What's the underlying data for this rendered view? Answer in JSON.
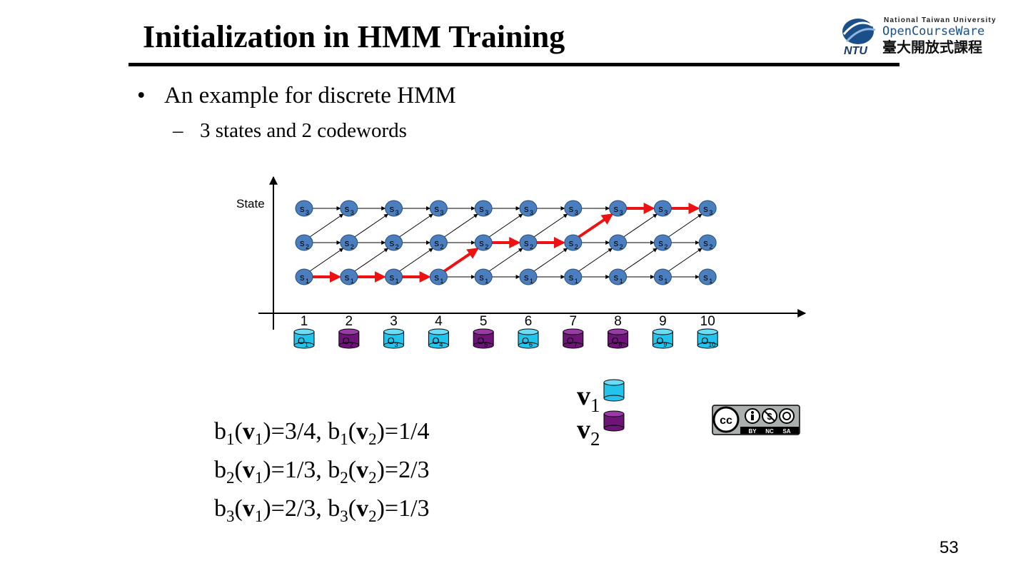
{
  "slide": {
    "title": "Initialization in HMM Training",
    "bullet_1": "An example for discrete HMM",
    "bullet_1_marker": "•",
    "bullet_2": "3 states and 2 codewords",
    "bullet_2_marker": "–",
    "page_number": "53"
  },
  "logo": {
    "line1": "National Taiwan University",
    "line2": "OpenCourseWare",
    "line3": "臺大開放式課程",
    "mark": "NTU"
  },
  "license": {
    "parts": [
      "BY",
      "NC",
      "SA"
    ],
    "cc": "cc"
  },
  "trellis": {
    "axis_label": "State",
    "times": [
      "1",
      "2",
      "3",
      "4",
      "5",
      "6",
      "7",
      "8",
      "9",
      "10"
    ],
    "state_labels": [
      {
        "base": "s",
        "sub": "3"
      },
      {
        "base": "s",
        "sub": "2"
      },
      {
        "base": "s",
        "sub": "1"
      }
    ],
    "observations": [
      {
        "label": "O",
        "sub": "1",
        "codeword": "v1"
      },
      {
        "label": "O",
        "sub": "2",
        "codeword": "v2"
      },
      {
        "label": "O",
        "sub": "3",
        "codeword": "v1"
      },
      {
        "label": "O",
        "sub": "4",
        "codeword": "v1"
      },
      {
        "label": "O",
        "sub": "5",
        "codeword": "v2"
      },
      {
        "label": "O",
        "sub": "6",
        "codeword": "v1"
      },
      {
        "label": "O",
        "sub": "7",
        "codeword": "v2"
      },
      {
        "label": "O",
        "sub": "8",
        "codeword": "v2"
      },
      {
        "label": "O",
        "sub": "9",
        "codeword": "v1"
      },
      {
        "label": "O",
        "sub": "10",
        "codeword": "v1"
      }
    ],
    "best_path_states": [
      1,
      1,
      1,
      1,
      2,
      2,
      2,
      3,
      3,
      3
    ],
    "colors": {
      "state_node": "#4a7ebf",
      "path": "#ee1111",
      "v1": "#22c4ec",
      "v2": "#6e1478"
    }
  },
  "legend": [
    {
      "base": "v",
      "sub": "1",
      "color": "#22c4ec"
    },
    {
      "base": "v",
      "sub": "2",
      "color": "#6e1478"
    }
  ],
  "emission_probs": [
    {
      "s": "1",
      "v1": "3/4",
      "v2": "1/4"
    },
    {
      "s": "2",
      "v1": "1/3",
      "v2": "2/3"
    },
    {
      "s": "3",
      "v1": "2/3",
      "v2": "1/3"
    }
  ]
}
